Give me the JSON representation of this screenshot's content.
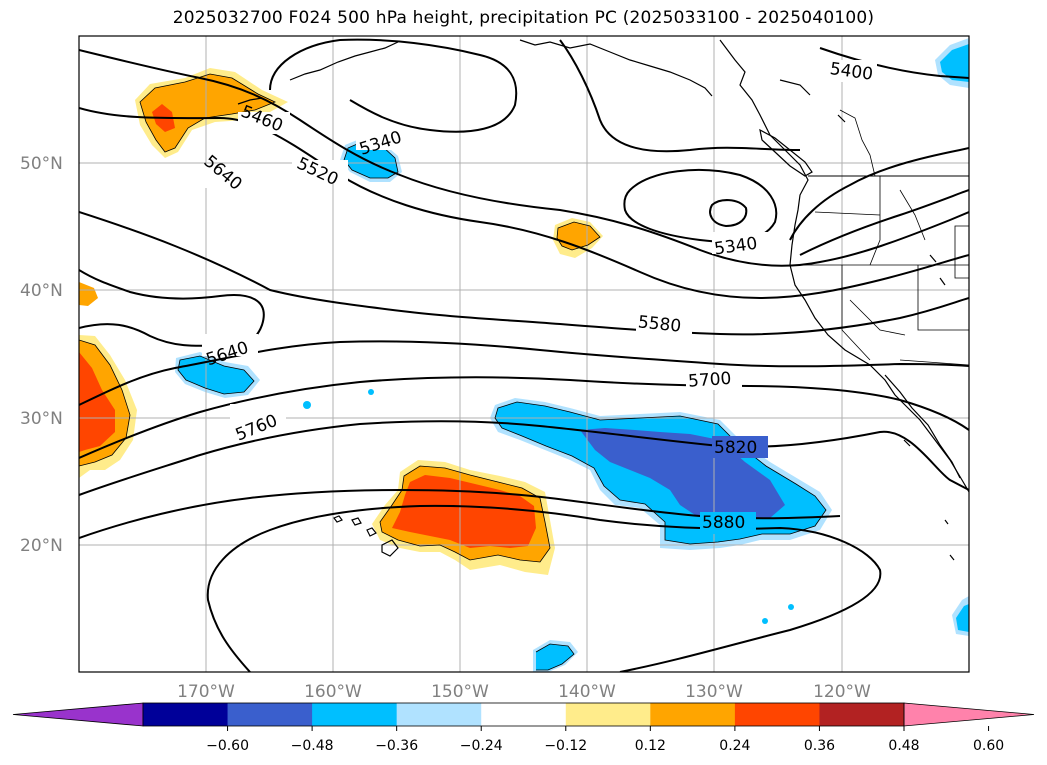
{
  "title": "2025032700 F024 500 hPa height, precipitation PC (2025033100 - 2025040100)",
  "map": {
    "lat_labels": [
      "50°N",
      "40°N",
      "30°N",
      "20°N"
    ],
    "lon_labels": [
      "170°W",
      "160°W",
      "150°W",
      "140°W",
      "130°W",
      "120°W"
    ],
    "lat_range": [
      10,
      60
    ],
    "lon_range": [
      -180,
      -110
    ],
    "gridlines": true,
    "contour_labels": [
      "5400",
      "5460",
      "5340",
      "5520",
      "5640",
      "5340",
      "5580",
      "5640",
      "5700",
      "5760",
      "5820",
      "5880"
    ]
  },
  "colorbar": {
    "tick_labels": [
      "−0.60",
      "−0.48",
      "−0.36",
      "−0.24",
      "−0.12",
      "0.12",
      "0.24",
      "0.36",
      "0.48",
      "0.60"
    ],
    "colors": [
      "#9933cc",
      "#000099",
      "#3a5fcd",
      "#00bfff",
      "#b0e2ff",
      "#ffffff",
      "#ffec8b",
      "#ffa500",
      "#ff4500",
      "#b22222",
      "#ff82ab"
    ],
    "extend": "both"
  },
  "palette": {
    "pos1": "#ffec8b",
    "pos2": "#ffa500",
    "pos3": "#ff4500",
    "neg1": "#b0e2ff",
    "neg2": "#00bfff",
    "neg3": "#3a5fcd"
  }
}
